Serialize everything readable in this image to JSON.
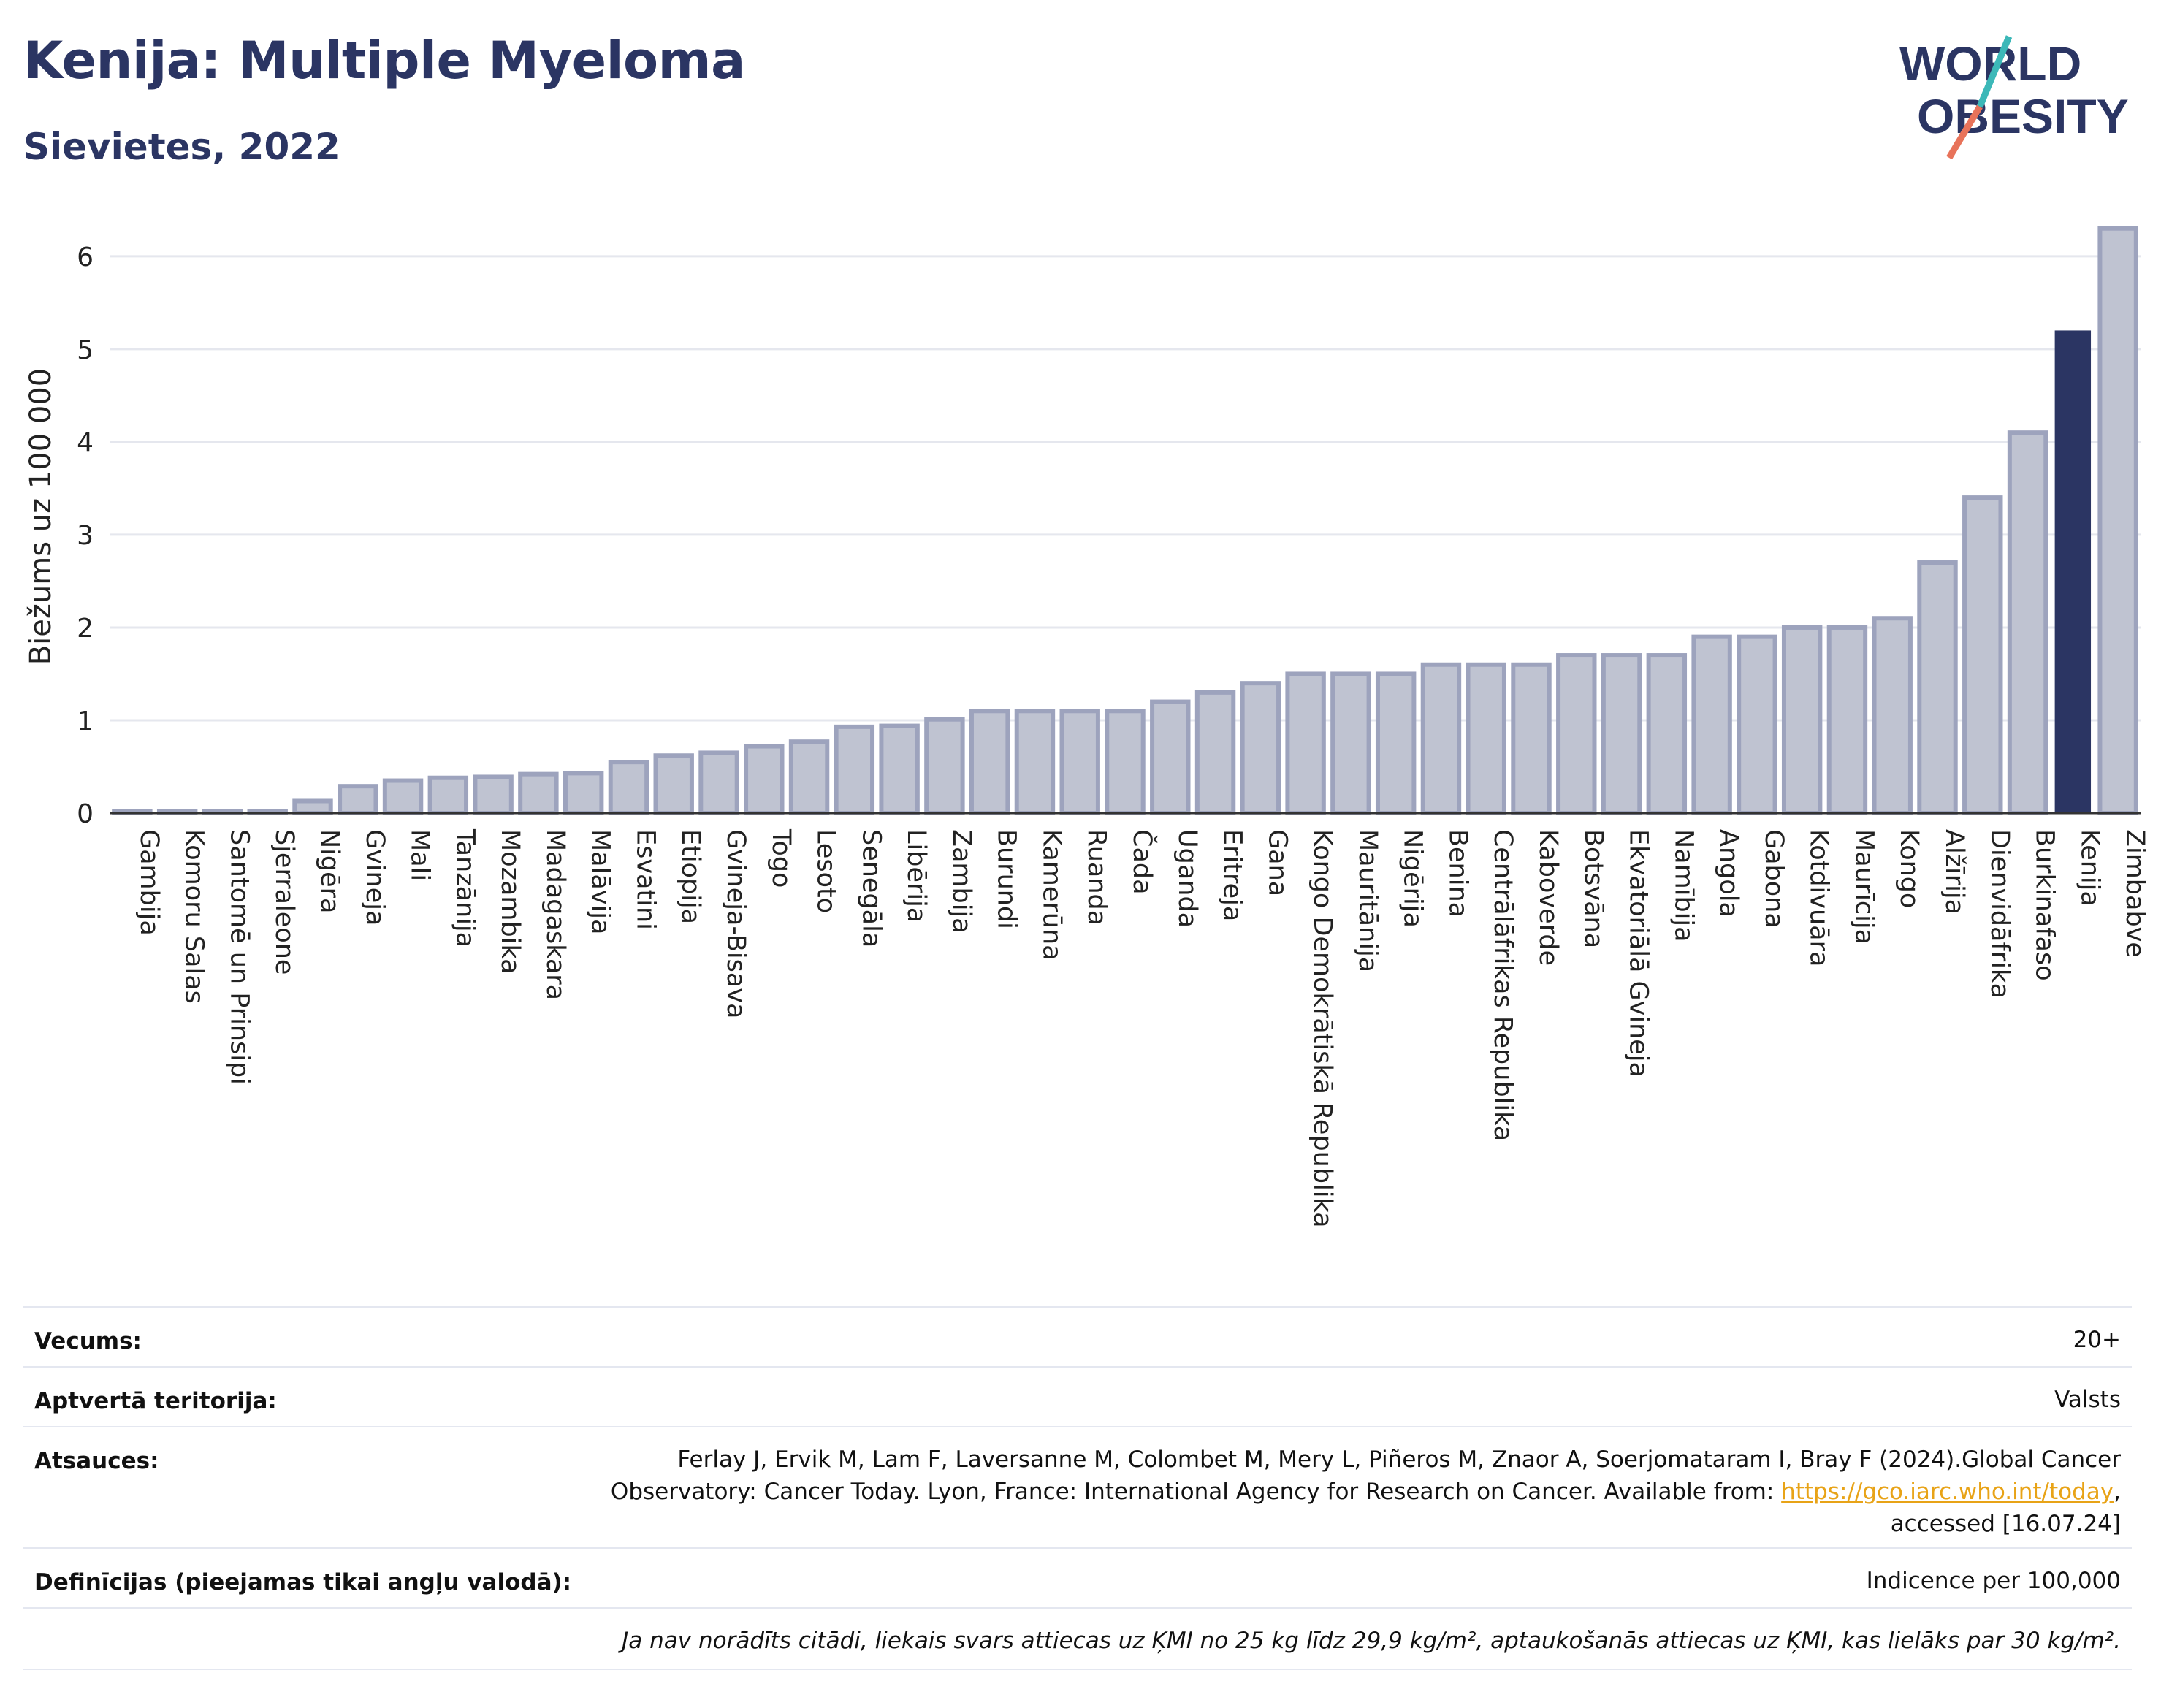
{
  "header": {
    "title": "Kenija: Multiple Myeloma",
    "subtitle": "Sievietes, 2022"
  },
  "logo": {
    "line1": "WORLD",
    "line2": "OBESITY",
    "colors": {
      "text": "#2b3563",
      "slash_top": "#3cb8b8",
      "slash_bottom": "#e8735a"
    }
  },
  "colors": {
    "bar": "#bfc3d1",
    "bar_border": "#9da3bd",
    "highlight": "#2b3563",
    "grid": "#e5e7ee"
  },
  "chart_data": {
    "type": "bar",
    "ylabel": "Biežums uz 100 000",
    "ylim": [
      0,
      6.4
    ],
    "yticks": [
      0,
      1,
      2,
      3,
      4,
      5,
      6
    ],
    "grid": true,
    "highlight": "Kenija",
    "categories": [
      "Gambija",
      "Komoru Salas",
      "Santomē un Prinsipi",
      "Sjerraleone",
      "Nigēra",
      "Gvineja",
      "Mali",
      "Tanzānija",
      "Mozambika",
      "Madagaskara",
      "Malāvija",
      "Esvatini",
      "Etiopija",
      "Gvineja-Bisava",
      "Togo",
      "Lesoto",
      "Senegāla",
      "Libērija",
      "Zambija",
      "Burundi",
      "Kamerūna",
      "Ruanda",
      "Čada",
      "Uganda",
      "Eritreja",
      "Gana",
      "Kongo Demokrātiskā Republika",
      "Mauritānija",
      "Nigērija",
      "Benina",
      "Centrālāfrikas Republika",
      "Kaboverde",
      "Botsvāna",
      "Ekvatoriālā Gvineja",
      "Namībija",
      "Angola",
      "Gabona",
      "Kotdivuāra",
      "Maurīcija",
      "Kongo",
      "Alžīrija",
      "Dienvidāfrika",
      "Burkinafaso",
      "Kenija",
      "Zimbabve"
    ],
    "values": [
      0.02,
      0.02,
      0.02,
      0.02,
      0.13,
      0.29,
      0.35,
      0.38,
      0.39,
      0.42,
      0.43,
      0.55,
      0.62,
      0.65,
      0.72,
      0.77,
      0.93,
      0.94,
      1.01,
      1.1,
      1.1,
      1.1,
      1.1,
      1.2,
      1.3,
      1.4,
      1.5,
      1.5,
      1.5,
      1.6,
      1.6,
      1.6,
      1.7,
      1.7,
      1.7,
      1.9,
      1.9,
      2.0,
      2.0,
      2.1,
      2.7,
      3.4,
      4.1,
      5.2,
      6.3
    ]
  },
  "info": {
    "age_label": "Vecums:",
    "age_value": "20+",
    "coverage_label": "Aptvertā teritorija:",
    "coverage_value": "Valsts",
    "refs_label": "Atsauces:",
    "refs_line1": "Ferlay J, Ervik M, Lam F, Laversanne M, Colombet M, Mery L, Piñeros M, Znaor A, Soerjomataram I, Bray F (2024).Global Cancer",
    "refs_line2": "Observatory: Cancer Today. Lyon, France: International Agency for Research on Cancer. Available from: ",
    "refs_link": "https://gco.iarc.who.int/today",
    "refs_line2_end": ",",
    "refs_line3": "accessed [16.07.24]",
    "defs_label": "Definīcijas (pieejamas tikai angļu valodā):",
    "defs_value": "Indicence per 100,000",
    "note": "Ja nav norādīts citādi, liekais svars attiecas uz ĶMI no 25 kg līdz 29,9 kg/m², aptaukošanās attiecas uz ĶMI, kas lielāks par 30 kg/m²."
  }
}
